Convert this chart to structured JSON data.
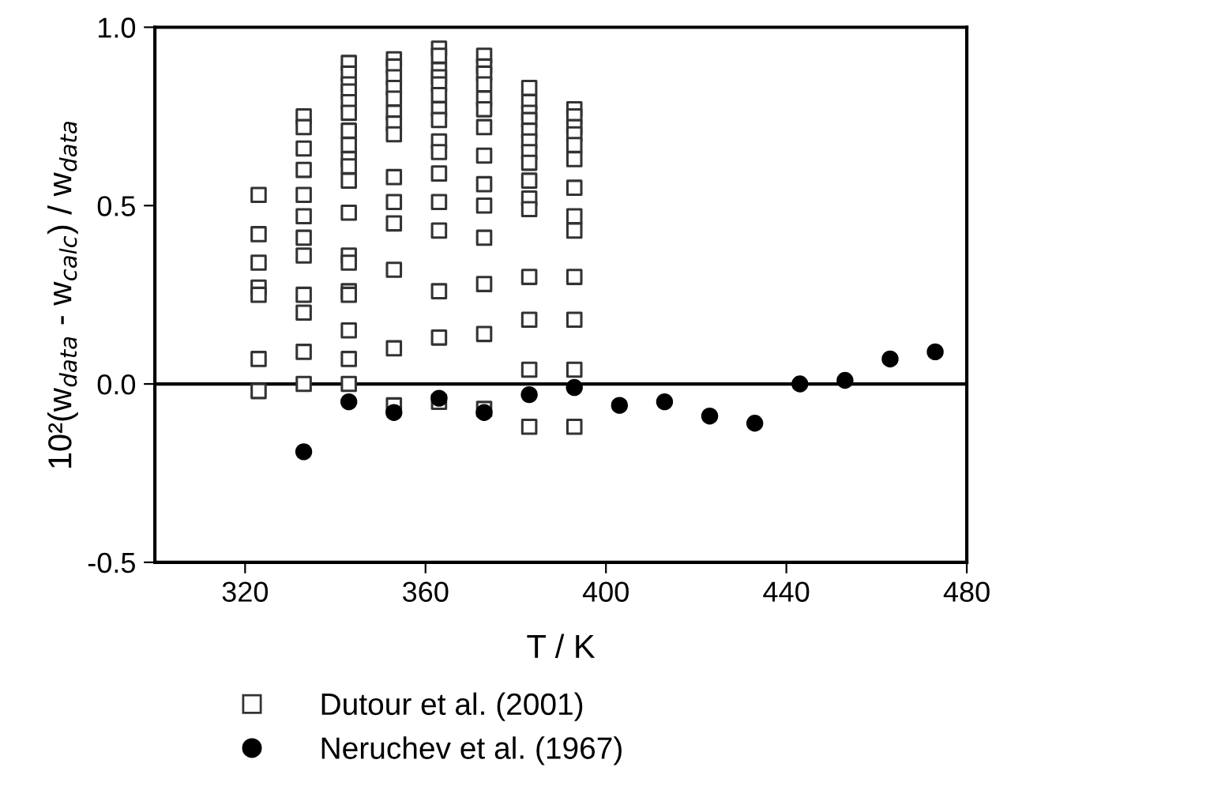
{
  "chart_data": {
    "type": "scatter",
    "xlabel": "T / K",
    "ylabel": "10²(w$_{data}$ - w$_{calc}$) / w$_{data}$",
    "xlim": [
      300,
      480
    ],
    "xticks": [
      320,
      360,
      400,
      440,
      480
    ],
    "ylim": [
      -0.5,
      1.0
    ],
    "yticks": [
      {
        "value": -0.5,
        "label": "-0.5"
      },
      {
        "value": 0,
        "label": "0.0"
      },
      {
        "value": 0.5,
        "label": "0.5"
      },
      {
        "value": 1.0,
        "label": "1.0"
      }
    ],
    "grid": false,
    "legend": "bottom",
    "ref_lines": [
      {
        "axis": "y",
        "value": 0,
        "color": "#000000",
        "line_style": "solid"
      }
    ],
    "series": [
      {
        "name": "Dutour et al. (2001)",
        "color": "#333333",
        "marker": "square",
        "x": [
          323,
          323,
          323,
          323,
          323,
          323,
          323,
          333,
          333,
          333,
          333,
          333,
          333,
          333,
          333,
          333,
          333,
          333,
          333,
          343,
          343,
          343,
          343,
          343,
          343,
          343,
          343,
          343,
          343,
          343,
          343,
          343,
          343,
          343,
          343,
          343,
          343,
          343,
          353,
          353,
          353,
          353,
          353,
          353,
          353,
          353,
          353,
          353,
          353,
          353,
          353,
          353,
          363,
          363,
          363,
          363,
          363,
          363,
          363,
          363,
          363,
          363,
          363,
          363,
          363,
          363,
          363,
          363,
          373,
          373,
          373,
          373,
          373,
          373,
          373,
          373,
          373,
          373,
          373,
          373,
          373,
          373,
          383,
          383,
          383,
          383,
          383,
          383,
          383,
          383,
          383,
          383,
          383,
          383,
          383,
          383,
          383,
          393,
          393,
          393,
          393,
          393,
          393,
          393,
          393,
          393,
          393,
          393,
          393,
          393
        ],
        "values": [
          0.53,
          0.42,
          0.34,
          0.27,
          0.25,
          0.07,
          -0.02,
          0.75,
          0.72,
          0.66,
          0.6,
          0.53,
          0.47,
          0.41,
          0.36,
          0.25,
          0.2,
          0.09,
          0.0,
          0.9,
          0.87,
          0.84,
          0.82,
          0.79,
          0.76,
          0.71,
          0.67,
          0.63,
          0.61,
          0.57,
          0.48,
          0.36,
          0.34,
          0.26,
          0.25,
          0.15,
          0.07,
          0.0,
          0.91,
          0.89,
          0.86,
          0.83,
          0.8,
          0.76,
          0.73,
          0.7,
          0.58,
          0.51,
          0.45,
          0.32,
          0.1,
          -0.06,
          0.94,
          0.92,
          0.88,
          0.86,
          0.84,
          0.81,
          0.77,
          0.74,
          0.68,
          0.65,
          0.59,
          0.51,
          0.43,
          0.26,
          0.13,
          -0.05,
          0.92,
          0.89,
          0.87,
          0.84,
          0.8,
          0.77,
          0.72,
          0.64,
          0.56,
          0.5,
          0.41,
          0.28,
          0.14,
          -0.07,
          0.83,
          0.79,
          0.76,
          0.74,
          0.71,
          0.68,
          0.65,
          0.62,
          0.57,
          0.52,
          0.49,
          0.3,
          0.18,
          0.04,
          -0.12,
          0.77,
          0.75,
          0.72,
          0.7,
          0.67,
          0.63,
          0.55,
          0.47,
          0.43,
          0.3,
          0.18,
          0.04,
          -0.12
        ]
      },
      {
        "name": "Neruchev et al. (1967)",
        "color": "#000000",
        "marker": "circle",
        "x": [
          333,
          343,
          353,
          363,
          373,
          383,
          393,
          403,
          413,
          423,
          433,
          443,
          453,
          463,
          473
        ],
        "values": [
          -0.19,
          -0.05,
          -0.08,
          -0.04,
          -0.08,
          -0.03,
          -0.01,
          -0.06,
          -0.05,
          -0.09,
          -0.11,
          0.0,
          0.01,
          0.07,
          0.09
        ]
      }
    ]
  }
}
